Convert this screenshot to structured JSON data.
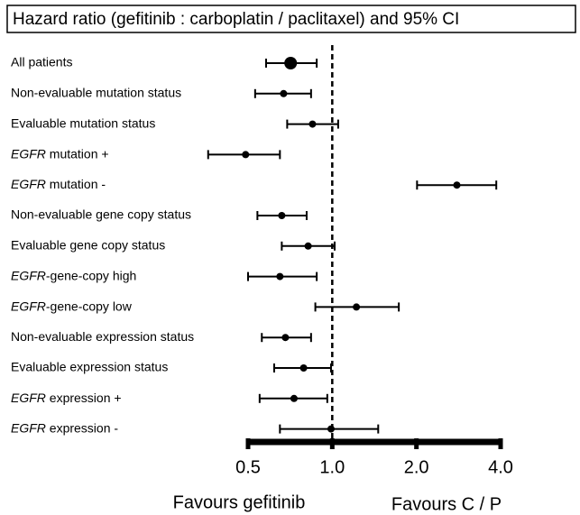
{
  "chart_data": {
    "type": "forest",
    "title": "Hazard ratio (gefitinib : carboplatin / paclitaxel) and 95% CI",
    "categories": [
      "All patients",
      "Non-evaluable mutation status",
      "Evaluable mutation status",
      "EGFR mutation +",
      "EGFR mutation -",
      "Non-evaluable gene copy status",
      "Evaluable gene copy status",
      "EGFR-gene-copy high",
      "EGFR-gene-copy low",
      "Non-evaluable expression status",
      "Evaluable expression status",
      "EGFR expression +",
      "EGFR expression -"
    ],
    "values": [
      0.71,
      0.67,
      0.85,
      0.49,
      2.79,
      0.66,
      0.82,
      0.65,
      1.22,
      0.68,
      0.79,
      0.73,
      0.99
    ],
    "lower": [
      0.58,
      0.53,
      0.69,
      0.36,
      2.01,
      0.54,
      0.66,
      0.5,
      0.87,
      0.56,
      0.62,
      0.55,
      0.65
    ],
    "upper": [
      0.88,
      0.84,
      1.05,
      0.65,
      3.86,
      0.81,
      1.02,
      0.88,
      1.73,
      0.84,
      0.99,
      0.96,
      1.46
    ],
    "color": "#000000",
    "xscale": "log",
    "xlim": [
      0.5,
      4
    ],
    "xticks": [
      0.5,
      {
        "value": 1,
        "label": "1.0"
      },
      {
        "value": 2,
        "label": "2.0"
      },
      {
        "value": 4,
        "label": "4.0"
      }
    ],
    "reference_line": 1,
    "annotations": [
      "Favours gefitinib",
      "Favours C / P"
    ]
  }
}
